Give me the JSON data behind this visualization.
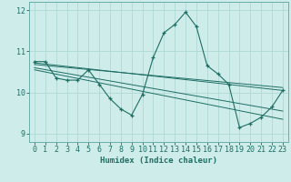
{
  "xlabel": "Humidex (Indice chaleur)",
  "background_color": "#ceecea",
  "line_color": "#1e6e64",
  "grid_color": "#b0d8d4",
  "xlim": [
    -0.5,
    23.5
  ],
  "ylim": [
    8.8,
    12.2
  ],
  "yticks": [
    9,
    10,
    11,
    12
  ],
  "xticks": [
    0,
    1,
    2,
    3,
    4,
    5,
    6,
    7,
    8,
    9,
    10,
    11,
    12,
    13,
    14,
    15,
    16,
    17,
    18,
    19,
    20,
    21,
    22,
    23
  ],
  "main_series": [
    [
      0,
      10.75
    ],
    [
      1,
      10.75
    ],
    [
      2,
      10.35
    ],
    [
      3,
      10.3
    ],
    [
      4,
      10.3
    ],
    [
      5,
      10.55
    ],
    [
      6,
      10.2
    ],
    [
      7,
      9.85
    ],
    [
      8,
      9.6
    ],
    [
      9,
      9.45
    ],
    [
      10,
      9.95
    ],
    [
      11,
      10.85
    ],
    [
      12,
      11.45
    ],
    [
      13,
      11.65
    ],
    [
      14,
      11.95
    ],
    [
      15,
      11.6
    ],
    [
      16,
      10.65
    ],
    [
      17,
      10.45
    ],
    [
      18,
      10.2
    ],
    [
      19,
      9.15
    ],
    [
      20,
      9.25
    ],
    [
      21,
      9.4
    ],
    [
      22,
      9.65
    ],
    [
      23,
      10.05
    ]
  ],
  "regression_lines": [
    {
      "x": [
        0,
        23
      ],
      "y": [
        10.72,
        10.05
      ]
    },
    {
      "x": [
        0,
        23
      ],
      "y": [
        10.68,
        10.12
      ]
    },
    {
      "x": [
        0,
        23
      ],
      "y": [
        10.6,
        9.55
      ]
    },
    {
      "x": [
        0,
        23
      ],
      "y": [
        10.55,
        9.35
      ]
    }
  ],
  "xlabel_fontsize": 6.5,
  "tick_fontsize": 6
}
